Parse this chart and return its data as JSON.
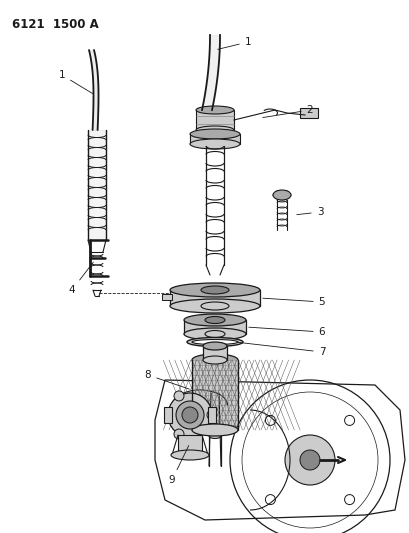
{
  "title": "6121  1500 A",
  "bg": "#ffffff",
  "lc": "#1a1a1a",
  "fig_w": 4.1,
  "fig_h": 5.33,
  "dpi": 100
}
